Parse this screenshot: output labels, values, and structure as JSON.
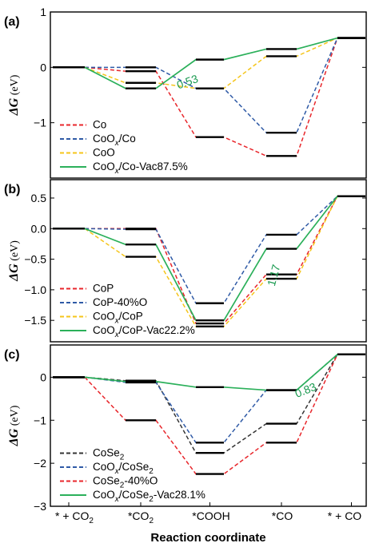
{
  "chart_data": {
    "type": "line",
    "xlabel": "Reaction coordinate",
    "x_categories": [
      "* + CO",
      "*CO",
      "*COOH",
      "*CO",
      "* + CO"
    ],
    "x_category_subscripts": [
      "2",
      "2",
      "",
      "",
      ""
    ],
    "panels": [
      {
        "id": "a",
        "label": "(a)",
        "ylabel": "ΔG (eV)",
        "ylim": [
          -2.0,
          1.0
        ],
        "yticks": [
          1,
          0,
          -1
        ],
        "legend_position": "bottom-left",
        "series": [
          {
            "name": "Co",
            "name_parts": [
              "Co"
            ],
            "style": "dashed",
            "color": "#e8262b",
            "values": [
              0,
              -0.07,
              -1.26,
              -1.6,
              0.53
            ]
          },
          {
            "name": "CoOx/Co",
            "name_parts": [
              "CoO",
              "x",
              "/Co"
            ],
            "style": "dashed",
            "color": "#2f5aa6",
            "values": [
              0,
              0.0,
              -0.38,
              -1.18,
              0.53
            ]
          },
          {
            "name": "CoO",
            "name_parts": [
              "CoO"
            ],
            "style": "dashed",
            "color": "#f5c51a",
            "values": [
              0,
              -0.28,
              -0.38,
              0.2,
              0.53
            ]
          },
          {
            "name": "CoOx/Co-Vac87.5%",
            "name_parts": [
              "CoO",
              "x",
              "/Co-Vac87.5%"
            ],
            "style": "solid",
            "color": "#2bb05a",
            "values": [
              0,
              -0.38,
              0.14,
              0.33,
              0.53
            ]
          }
        ],
        "annotation": {
          "text": "0.53"
        }
      },
      {
        "id": "b",
        "label": "(b)",
        "ylabel": "ΔG (eV)",
        "ylim": [
          -1.85,
          0.8
        ],
        "yticks": [
          0.5,
          0.0,
          -0.5,
          -1.0,
          -1.5
        ],
        "ytick_labels": [
          "0.5",
          "0.0",
          "-0.5",
          "-1.0",
          "-1.5"
        ],
        "legend_position": "bottom-left",
        "series": [
          {
            "name": "CoP",
            "name_parts": [
              "CoP"
            ],
            "style": "dashed",
            "color": "#e8262b",
            "values": [
              0,
              0.0,
              -1.55,
              -0.75,
              0.53
            ]
          },
          {
            "name": "CoP-40%O",
            "name_parts": [
              "CoP-40%O"
            ],
            "style": "dashed",
            "color": "#2f5aa6",
            "values": [
              0,
              -0.01,
              -1.22,
              -0.1,
              0.53
            ]
          },
          {
            "name": "CoOx/CoP",
            "name_parts": [
              "CoO",
              "x",
              "/CoP"
            ],
            "style": "dashed",
            "color": "#f5c51a",
            "values": [
              0,
              -0.46,
              -1.6,
              -0.82,
              0.53
            ]
          },
          {
            "name": "CoOx/CoP-Vac22.2%",
            "name_parts": [
              "CoO",
              "x",
              "/CoP-Vac22.2%"
            ],
            "style": "solid",
            "color": "#2bb05a",
            "values": [
              0,
              -0.26,
              -1.5,
              -0.33,
              0.53
            ]
          }
        ],
        "annotation": {
          "text": "1.17"
        }
      },
      {
        "id": "c",
        "label": "(c)",
        "ylabel": "ΔG (eV)",
        "ylim": [
          -3.0,
          0.75
        ],
        "yticks": [
          0,
          -1,
          -2,
          -3
        ],
        "legend_position": "bottom-left",
        "series": [
          {
            "name": "CoSe2",
            "name_parts": [
              "CoSe",
              "2",
              ""
            ],
            "sub_index": 1,
            "style": "dashed",
            "color": "#333333",
            "values": [
              0,
              -0.08,
              -1.76,
              -1.08,
              0.53
            ]
          },
          {
            "name": "CoOx/CoSe2",
            "name_parts": [
              "CoO",
              "x",
              "/CoSe",
              "2"
            ],
            "style": "dashed",
            "color": "#2f5aa6",
            "values": [
              0,
              -0.12,
              -1.52,
              -0.3,
              0.53
            ]
          },
          {
            "name": "CoSe2-40%O",
            "name_parts": [
              "CoSe",
              "2",
              "-40%O"
            ],
            "sub_index": 1,
            "style": "dashed",
            "color": "#e8262b",
            "values": [
              0,
              -1.0,
              -2.25,
              -1.52,
              0.53
            ]
          },
          {
            "name": "CoOx/CoSe2-Vac28.1%",
            "name_parts": [
              "CoO",
              "x",
              "/CoSe",
              "2",
              "-Vac28.1%"
            ],
            "style": "solid",
            "color": "#2bb05a",
            "values": [
              0,
              -0.1,
              -0.23,
              -0.3,
              0.53
            ]
          }
        ],
        "annotation": {
          "text": "0.83"
        }
      }
    ]
  }
}
